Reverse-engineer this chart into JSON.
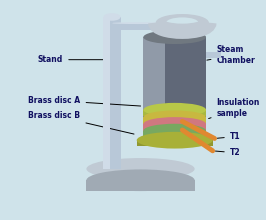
{
  "bg_color": "#cfe3ea",
  "labels": {
    "stand": "Stand",
    "steam_chamber": "Steam\nChamber",
    "insulation_sample": "Insulation\nsample",
    "brass_disc_a": "Brass disc A",
    "brass_disc_b": "Brass disc B",
    "t1": "T1",
    "t2": "T2"
  },
  "colors": {
    "stand_col": "#b8c8d8",
    "stand_hi": "#d0dce8",
    "stand_dark": "#909db0",
    "cylinder_top": "#707880",
    "cylinder_side": "#606878",
    "cylinder_hi": "#909aa8",
    "ring_col": "#c0cad4",
    "base_col": "#c0cad4",
    "base_dark": "#a0aab4",
    "yellow_disc": "#c8b840",
    "pink_disc": "#d07880",
    "green_disc": "#78a860",
    "brass_a_col": "#a8b840",
    "brass_a_top": "#b8c848",
    "brass_b_col": "#909830",
    "brass_b_top": "#a8b038",
    "orange_probe": "#e08830",
    "label_color": "#101060"
  }
}
